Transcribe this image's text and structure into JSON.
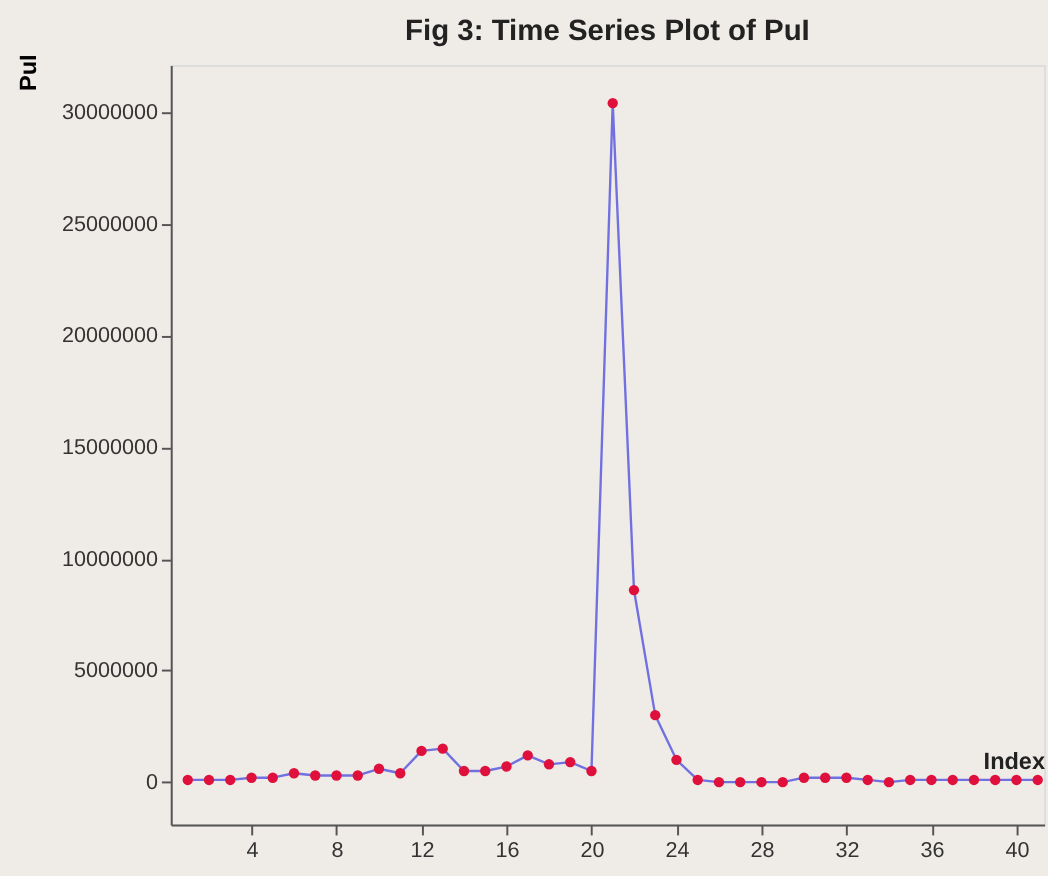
{
  "chart_data": {
    "type": "line",
    "title": "Fig 3: Time Series Plot of PuI",
    "xlabel": "Index",
    "ylabel": "PuI",
    "x": [
      1,
      2,
      3,
      4,
      5,
      6,
      7,
      8,
      9,
      10,
      11,
      12,
      13,
      14,
      15,
      16,
      17,
      18,
      19,
      20,
      21,
      22,
      23,
      24,
      25,
      26,
      27,
      28,
      29,
      30,
      31,
      32,
      33,
      34,
      35,
      36,
      37,
      38,
      39,
      40,
      41
    ],
    "series": [
      {
        "color": "#7070e0",
        "values": [
          100000,
          100000,
          100000,
          200000,
          200000,
          400000,
          300000,
          300000,
          300000,
          600000,
          400000,
          1400000,
          1500000,
          500000,
          500000,
          700000,
          1200000,
          800000,
          900000,
          500000,
          30400000,
          8600000,
          3000000,
          1000000,
          100000,
          0,
          0,
          0,
          0,
          200000,
          200000,
          200000,
          100000,
          0,
          100000,
          100000,
          100000,
          100000,
          100000,
          100000,
          100000
        ]
      }
    ],
    "marker": "circle",
    "line_style": "solid",
    "xlim": [
      0.2,
      41.3
    ],
    "xticks": [
      4,
      8,
      12,
      16,
      20,
      24,
      28,
      32,
      36,
      40
    ],
    "ylim": [
      -1900000,
      32100000
    ],
    "yticks": [
      0,
      5000000,
      10000000,
      15000000,
      20000000,
      25000000,
      30000000
    ],
    "grid": false
  }
}
